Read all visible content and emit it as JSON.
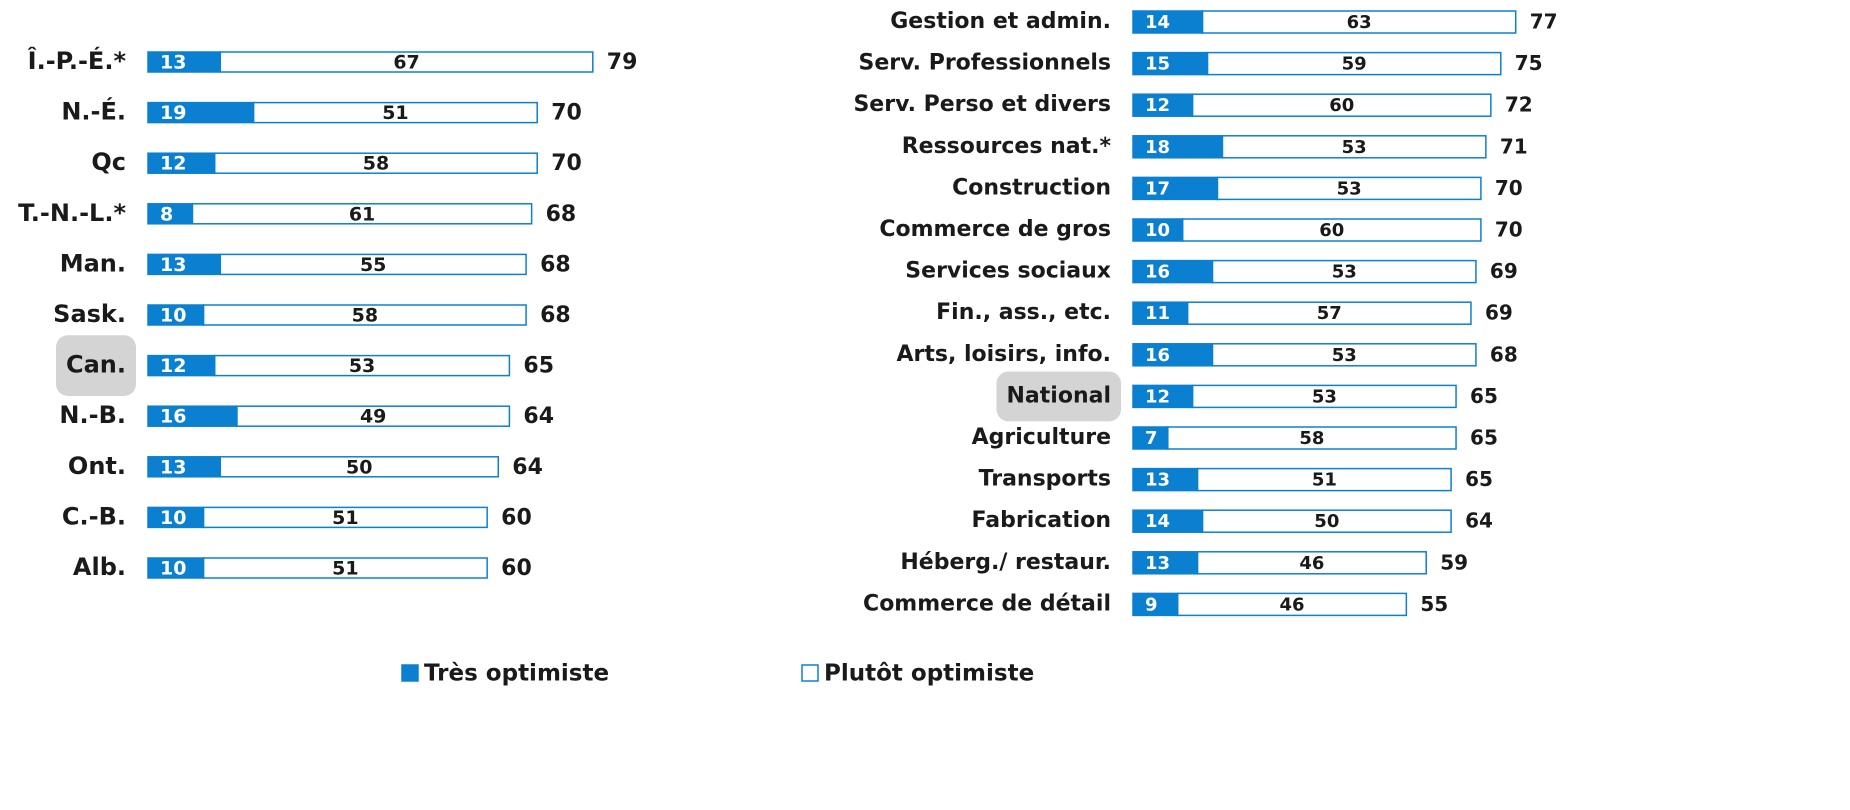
{
  "chart_data": [
    {
      "type": "bar",
      "orientation": "horizontal",
      "stacked": true,
      "categories": [
        "Î.-P.-É.*",
        "N.-É.",
        "Qc",
        "T.-N.-L.*",
        "Man.",
        "Sask.",
        "Can.",
        "N.-B.",
        "Ont.",
        "C.-B.",
        "Alb."
      ],
      "series": [
        {
          "name": "Très optimiste",
          "color": "#0b80d0",
          "values": [
            13,
            19,
            12,
            8,
            13,
            10,
            12,
            16,
            13,
            10,
            10
          ]
        },
        {
          "name": "Plutôt optimiste",
          "color": "#ffffff",
          "values": [
            67,
            51,
            58,
            61,
            55,
            58,
            53,
            49,
            50,
            51,
            51
          ]
        }
      ],
      "totals": [
        79,
        70,
        70,
        68,
        68,
        68,
        65,
        64,
        64,
        60,
        60
      ],
      "highlight": 6,
      "xlim": [
        0,
        100
      ]
    },
    {
      "type": "bar",
      "orientation": "horizontal",
      "stacked": true,
      "categories": [
        "Gestion et admin.",
        "Serv. Professionnels",
        "Serv. Perso et divers",
        "Ressources nat.*",
        "Construction",
        "Commerce de gros",
        "Services sociaux",
        "Fin., ass., etc.",
        "Arts, loisirs, info.",
        "National",
        "Agriculture",
        "Transports",
        "Fabrication",
        "Héberg./ restaur.",
        "Commerce de détail"
      ],
      "series": [
        {
          "name": "Très optimiste",
          "color": "#0b80d0",
          "values": [
            14,
            15,
            12,
            18,
            17,
            10,
            16,
            11,
            16,
            12,
            7,
            13,
            14,
            13,
            9
          ]
        },
        {
          "name": "Plutôt optimiste",
          "color": "#ffffff",
          "values": [
            63,
            59,
            60,
            53,
            53,
            60,
            53,
            57,
            53,
            53,
            58,
            51,
            50,
            46,
            46
          ]
        }
      ],
      "totals": [
        77,
        75,
        72,
        71,
        70,
        70,
        69,
        69,
        68,
        65,
        65,
        65,
        64,
        59,
        55
      ],
      "highlight": 9,
      "xlim": [
        0,
        100
      ]
    }
  ]
}
